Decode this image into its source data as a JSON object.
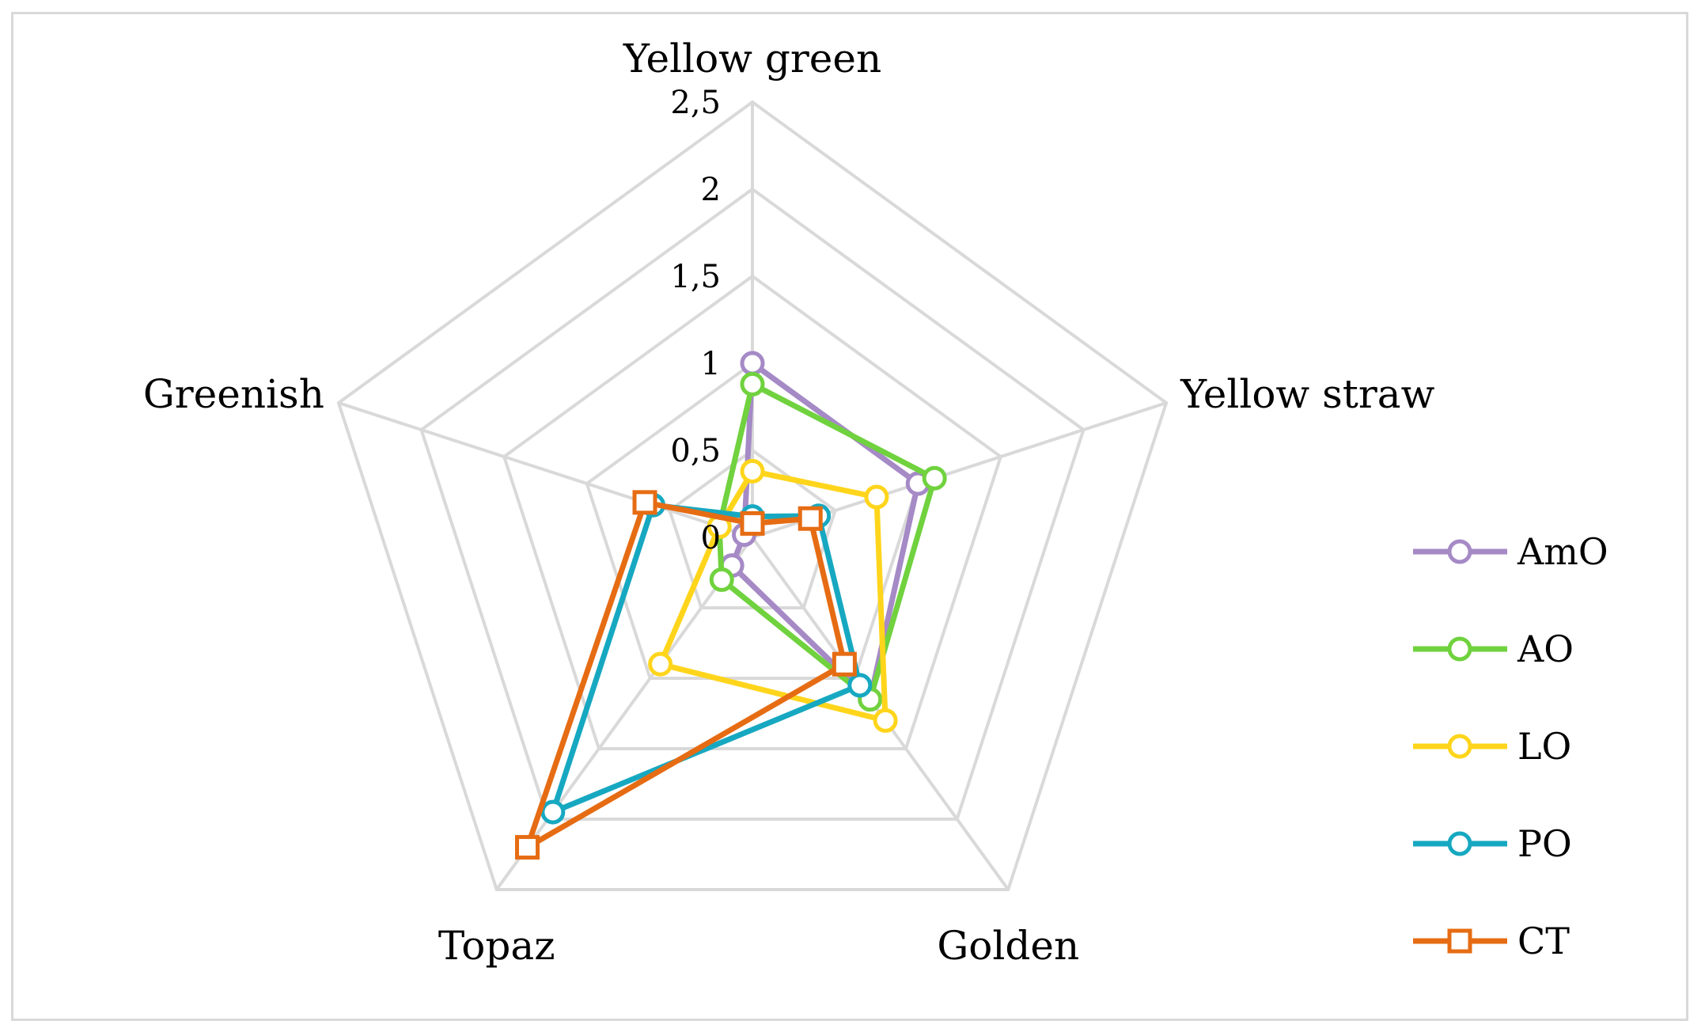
{
  "chart_data": {
    "type": "radar",
    "categories": [
      "Yellow green",
      "Yellow straw",
      "Golden",
      "Topaz",
      "Greenish"
    ],
    "rlim": [
      0,
      2.5
    ],
    "ticks": [
      "0",
      "0,5",
      "1",
      "1,5",
      "2",
      "2,5"
    ],
    "tick_values": [
      0,
      0.5,
      1,
      1.5,
      2,
      2.5
    ],
    "grid": true,
    "legend_position": "right",
    "series": [
      {
        "name": "AmO",
        "color": "#a58ac6",
        "marker": "circle",
        "values": [
          1.0,
          1.0,
          1.15,
          0.2,
          0.05
        ]
      },
      {
        "name": "AO",
        "color": "#70d23e",
        "marker": "circle",
        "values": [
          0.88,
          1.1,
          1.15,
          0.3,
          0.2
        ]
      },
      {
        "name": "LO",
        "color": "#ffd51c",
        "marker": "circle",
        "values": [
          0.38,
          0.75,
          1.3,
          0.9,
          0.2
        ]
      },
      {
        "name": "PO",
        "color": "#17a8c1",
        "marker": "circle",
        "values": [
          0.12,
          0.4,
          1.05,
          1.95,
          0.6
        ]
      },
      {
        "name": "CT",
        "color": "#e66c13",
        "marker": "square",
        "values": [
          0.08,
          0.35,
          0.9,
          2.2,
          0.65
        ]
      }
    ]
  }
}
